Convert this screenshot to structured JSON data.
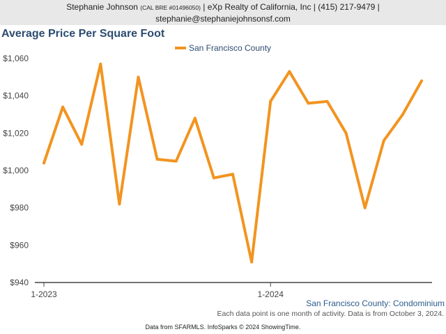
{
  "header": {
    "name": "Stephanie Johnson",
    "license": "(CAL BRE #01496050)",
    "details": "| eXp Realty of California, Inc | (415) 217-9479 |",
    "email": "stephanie@stephaniejohnsonsf.com"
  },
  "colors": {
    "series": "#f29420",
    "title": "#2c4c70",
    "axis": "#444444"
  },
  "chart_data": {
    "type": "line",
    "title": "Average Price Per Square Foot",
    "subtitle": "San Francisco County: Condominium",
    "note": "Each data point is one month of activity. Data is from October 3, 2024.",
    "source": "Data from SFARMLS. InfoSparks © 2024 ShowingTime.",
    "legend_position": "top",
    "grid": false,
    "ylim": [
      940,
      1060
    ],
    "yticks": [
      "$1,060",
      "$1,040",
      "$1,020",
      "$1,000",
      "$980",
      "$960",
      "$940"
    ],
    "xticks": [
      "1-2023",
      "1-2024"
    ],
    "x": [
      "2023-01",
      "2023-02",
      "2023-03",
      "2023-04",
      "2023-05",
      "2023-06",
      "2023-07",
      "2023-08",
      "2023-09",
      "2023-10",
      "2023-11",
      "2023-12",
      "2024-01",
      "2024-02",
      "2024-03",
      "2024-04",
      "2024-05",
      "2024-06",
      "2024-07",
      "2024-08",
      "2024-09"
    ],
    "series": [
      {
        "name": "San Francisco County",
        "values": [
          1004,
          1034,
          1014,
          1057,
          982,
          1050,
          1006,
          1005,
          1028,
          996,
          998,
          951,
          1037,
          1053,
          1036,
          1037,
          1020,
          980,
          1016,
          1030,
          1048
        ]
      }
    ]
  }
}
